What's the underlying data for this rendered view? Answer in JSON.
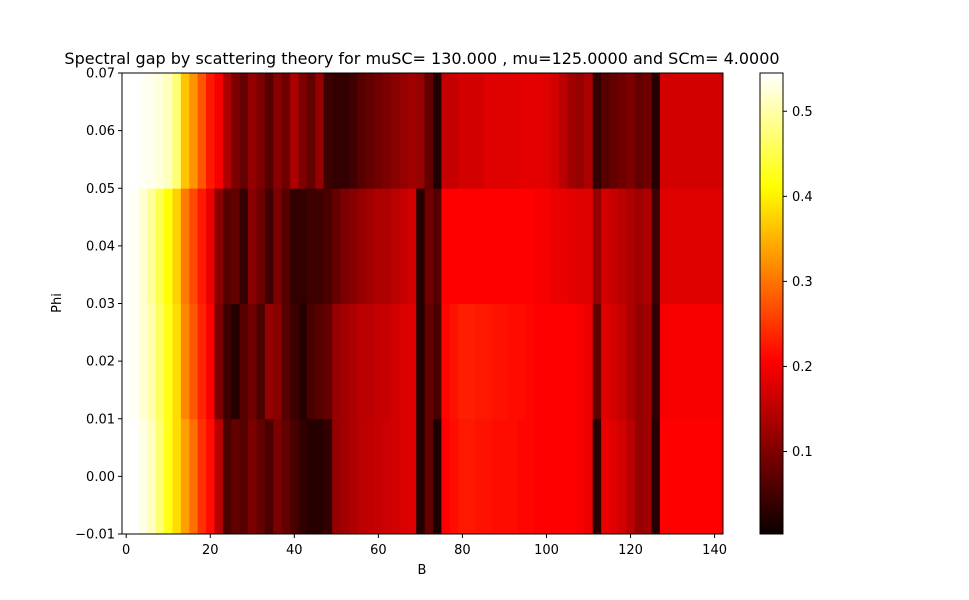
{
  "chart_data": {
    "type": "heatmap",
    "title": "Spectral gap by scattering theory for muSC= 130.000 , mu=125.0000 and SCm=  4.0000",
    "xlabel": "B",
    "ylabel": "Phi",
    "xlim": [
      -1,
      142
    ],
    "ylim": [
      -0.01,
      0.07
    ],
    "x_ticks": [
      0,
      20,
      40,
      60,
      80,
      100,
      120,
      140
    ],
    "x_tick_labels": [
      "0",
      "20",
      "40",
      "60",
      "80",
      "100",
      "120",
      "140"
    ],
    "y_ticks": [
      -0.01,
      0.0,
      0.01,
      0.02,
      0.03,
      0.04,
      0.05,
      0.06,
      0.07
    ],
    "y_tick_labels": [
      "−0.01",
      "0.00",
      "0.01",
      "0.02",
      "0.03",
      "0.04",
      "0.05",
      "0.06",
      "0.07"
    ],
    "colormap": "hot",
    "colorbar": {
      "range": [
        0.003,
        0.545
      ],
      "ticks": [
        0.1,
        0.2,
        0.3,
        0.4,
        0.5
      ],
      "tick_labels": [
        "0.1",
        "0.2",
        "0.3",
        "0.4",
        "0.5"
      ]
    },
    "x_edges": [
      -1,
      1,
      3,
      5,
      7,
      9,
      11,
      13,
      15,
      17,
      19,
      21,
      23,
      25,
      27,
      29,
      31,
      33,
      35,
      37,
      39,
      41,
      43,
      45,
      47,
      49,
      51,
      53,
      55,
      57,
      59,
      61,
      63,
      65,
      67,
      69,
      71,
      73,
      75,
      77,
      79,
      81,
      83,
      85,
      87,
      89,
      91,
      93,
      95,
      97,
      99,
      101,
      103,
      105,
      107,
      109,
      111,
      113,
      115,
      117,
      119,
      121,
      123,
      125,
      127,
      129,
      131,
      133,
      135,
      137,
      139,
      142
    ],
    "y_edges": [
      -0.01,
      0.01,
      0.03,
      0.05,
      0.07
    ],
    "rows": [
      [
        0.545,
        0.545,
        0.53,
        0.51,
        0.47,
        0.42,
        0.38,
        0.33,
        0.29,
        0.24,
        0.21,
        0.13,
        0.04,
        0.06,
        0.05,
        0.08,
        0.06,
        0.04,
        0.08,
        0.06,
        0.04,
        0.02,
        0.01,
        0.01,
        0.02,
        0.1,
        0.11,
        0.12,
        0.13,
        0.135,
        0.14,
        0.145,
        0.15,
        0.155,
        0.16,
        0.005,
        0.06,
        0.003,
        0.2,
        0.21,
        0.22,
        0.22,
        0.215,
        0.215,
        0.21,
        0.21,
        0.21,
        0.205,
        0.205,
        0.2,
        0.2,
        0.19,
        0.19,
        0.185,
        0.18,
        0.17,
        0.01,
        0.17,
        0.16,
        0.15,
        0.13,
        0.1,
        0.11,
        0.01,
        0.19,
        0.19,
        0.19,
        0.19,
        0.19,
        0.19,
        0.19
      ],
      [
        0.545,
        0.54,
        0.52,
        0.5,
        0.46,
        0.42,
        0.38,
        0.31,
        0.27,
        0.23,
        0.19,
        0.08,
        0.03,
        0.01,
        0.05,
        0.07,
        0.04,
        0.1,
        0.09,
        0.05,
        0.03,
        0.01,
        0.04,
        0.05,
        0.06,
        0.1,
        0.11,
        0.12,
        0.13,
        0.13,
        0.14,
        0.14,
        0.15,
        0.155,
        0.16,
        0.005,
        0.06,
        0.04,
        0.205,
        0.215,
        0.225,
        0.225,
        0.22,
        0.22,
        0.215,
        0.215,
        0.21,
        0.21,
        0.205,
        0.2,
        0.2,
        0.19,
        0.19,
        0.185,
        0.18,
        0.17,
        0.06,
        0.16,
        0.15,
        0.14,
        0.12,
        0.1,
        0.11,
        0.02,
        0.18,
        0.18,
        0.18,
        0.18,
        0.18,
        0.18,
        0.18
      ],
      [
        0.545,
        0.54,
        0.52,
        0.49,
        0.45,
        0.41,
        0.37,
        0.3,
        0.26,
        0.22,
        0.17,
        0.09,
        0.05,
        0.06,
        0.02,
        0.09,
        0.07,
        0.03,
        0.08,
        0.05,
        0.02,
        0.02,
        0.03,
        0.03,
        0.04,
        0.06,
        0.08,
        0.09,
        0.1,
        0.11,
        0.12,
        0.12,
        0.13,
        0.14,
        0.15,
        0.01,
        0.07,
        0.05,
        0.19,
        0.2,
        0.2,
        0.2,
        0.2,
        0.2,
        0.2,
        0.195,
        0.19,
        0.19,
        0.185,
        0.18,
        0.18,
        0.17,
        0.17,
        0.165,
        0.16,
        0.16,
        0.1,
        0.15,
        0.14,
        0.13,
        0.12,
        0.11,
        0.12,
        0.03,
        0.16,
        0.16,
        0.16,
        0.16,
        0.16,
        0.16,
        0.16
      ],
      [
        0.545,
        0.545,
        0.54,
        0.535,
        0.525,
        0.51,
        0.47,
        0.36,
        0.32,
        0.27,
        0.22,
        0.18,
        0.12,
        0.08,
        0.06,
        0.1,
        0.08,
        0.05,
        0.09,
        0.07,
        0.12,
        0.08,
        0.06,
        0.1,
        0.03,
        0.02,
        0.02,
        0.03,
        0.05,
        0.06,
        0.07,
        0.08,
        0.09,
        0.1,
        0.11,
        0.1,
        0.06,
        0.005,
        0.14,
        0.14,
        0.15,
        0.15,
        0.15,
        0.16,
        0.16,
        0.16,
        0.16,
        0.165,
        0.165,
        0.165,
        0.16,
        0.15,
        0.13,
        0.11,
        0.1,
        0.12,
        0.02,
        0.05,
        0.06,
        0.07,
        0.08,
        0.06,
        0.07,
        0.01,
        0.15,
        0.15,
        0.15,
        0.15,
        0.15,
        0.15,
        0.15
      ]
    ]
  }
}
